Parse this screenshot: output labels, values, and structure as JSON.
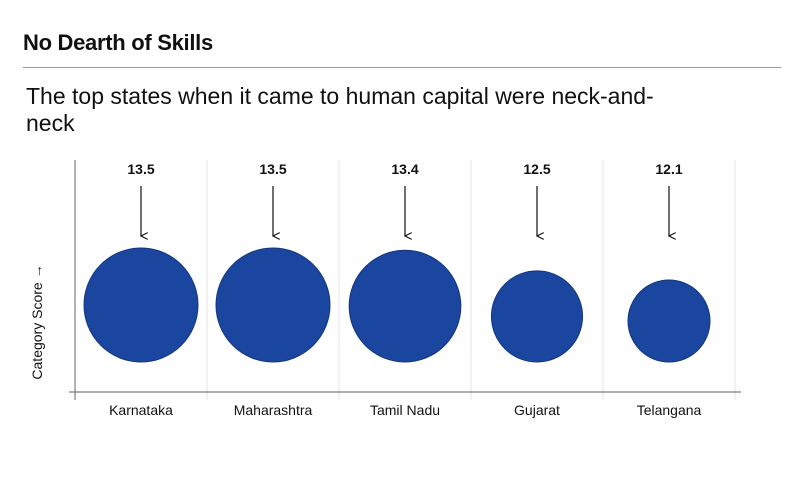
{
  "title": "No Dearth of Skills",
  "subtitle": "The top states when it came to human capital were neck-and-neck",
  "colors": {
    "bubble": "#1a46a0",
    "bubble_stroke": "#14367e",
    "axis": "#7f7f7f",
    "grid": "#e4e4e4",
    "text": "#111111"
  },
  "chart_data": {
    "type": "bubble",
    "title": "No Dearth of Skills",
    "subtitle": "The top states when it came to human capital were neck-and-neck",
    "ylabel": "Category Score →",
    "xlabel": "",
    "categories": [
      "Karnataka",
      "Maharashtra",
      "Tamil Nadu",
      "Gujarat",
      "Telangana"
    ],
    "values": [
      13.5,
      13.5,
      13.4,
      12.5,
      12.1
    ],
    "value_labels": [
      "13.5",
      "13.5",
      "13.4",
      "12.5",
      "12.1"
    ],
    "grid": true,
    "legend": "none"
  }
}
